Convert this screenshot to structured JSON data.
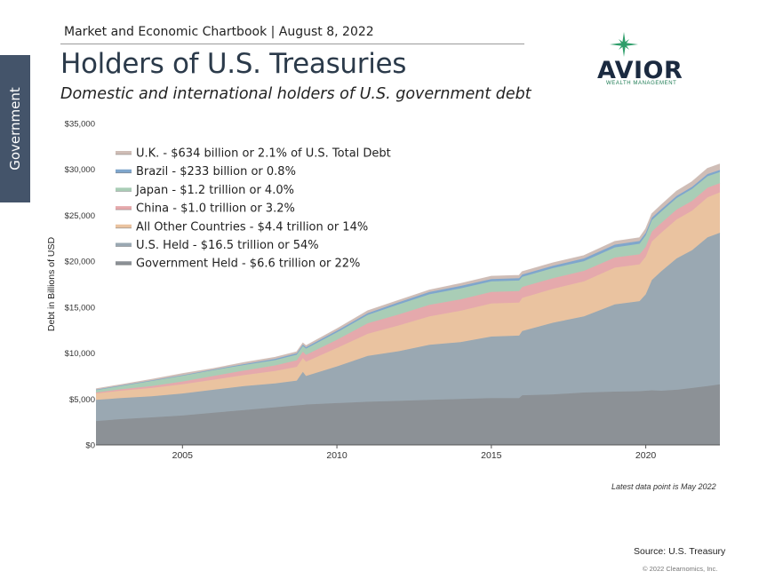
{
  "header": {
    "top_line": "Market and Economic Chartbook | August 8, 2022",
    "title": "Holders of U.S. Treasuries",
    "subtitle": "Domestic and international holders of U.S. government debt"
  },
  "side_tab": "Government",
  "logo": {
    "word": "AVIOR",
    "tagline": "WEALTH MANAGEMENT",
    "star_color": "#2e9e6a",
    "word_color": "#1b2a40"
  },
  "footer": {
    "latest": "Latest data point is May 2022",
    "source": "Source: U.S. Treasury",
    "copyright": "© 2022 Clearnomics, Inc."
  },
  "chart_data": {
    "type": "area",
    "stacked": true,
    "ylabel": "Debt in Billions of USD",
    "xlabel": "",
    "ylim": [
      0,
      35000
    ],
    "xlim": [
      2002.2,
      2022.4
    ],
    "y_ticks": [
      "$0",
      "$5,000",
      "$10,000",
      "$15,000",
      "$20,000",
      "$25,000",
      "$30,000",
      "$35,000"
    ],
    "x_ticks": [
      "2005",
      "2010",
      "2015",
      "2020"
    ],
    "grid": false,
    "legend_position": "top-left",
    "x": [
      2002.2,
      2003,
      2004,
      2005,
      2006,
      2007,
      2008,
      2008.7,
      2008.9,
      2009,
      2010,
      2011,
      2012,
      2013,
      2014,
      2015,
      2015.9,
      2016,
      2017,
      2018,
      2019,
      2019.8,
      2020,
      2020.2,
      2020.5,
      2021,
      2021.5,
      2022,
      2022.4
    ],
    "series": [
      {
        "name": "Government Held - $6.6 trillion or 22%",
        "color": "#8c9196",
        "values": [
          2600,
          2800,
          3000,
          3200,
          3500,
          3800,
          4100,
          4300,
          4350,
          4400,
          4550,
          4700,
          4800,
          4900,
          5000,
          5100,
          5100,
          5400,
          5500,
          5700,
          5800,
          5850,
          5900,
          5950,
          5900,
          6000,
          6200,
          6400,
          6600
        ]
      },
      {
        "name": "U.S. Held - $16.5 trillion or 54%",
        "color": "#9aa8b2",
        "values": [
          2300,
          2300,
          2300,
          2400,
          2500,
          2600,
          2600,
          2700,
          3600,
          3100,
          4000,
          5000,
          5400,
          6000,
          6200,
          6700,
          6800,
          7000,
          7800,
          8300,
          9500,
          9800,
          10500,
          12000,
          13000,
          14300,
          15000,
          16200,
          16500
        ]
      },
      {
        "name": "All Other Countries - $4.4 trillion or 14%",
        "color": "#eac3a0",
        "values": [
          700,
          800,
          900,
          1000,
          1100,
          1200,
          1350,
          1500,
          1500,
          1550,
          2000,
          2400,
          2800,
          3100,
          3400,
          3600,
          3600,
          3600,
          3700,
          3800,
          4000,
          4000,
          4100,
          4200,
          4200,
          4250,
          4300,
          4350,
          4400
        ]
      },
      {
        "name": "China - $1.0 trillion or 3.2%",
        "color": "#e5a9ac",
        "values": [
          100,
          150,
          200,
          300,
          400,
          500,
          600,
          700,
          700,
          750,
          900,
          1150,
          1200,
          1250,
          1250,
          1250,
          1250,
          1200,
          1150,
          1150,
          1100,
          1100,
          1070,
          1070,
          1060,
          1070,
          1060,
          1050,
          1000
        ]
      },
      {
        "name": "Japan - $1.2 trillion or 4.0%",
        "color": "#a9cdb6",
        "values": [
          300,
          400,
          600,
          650,
          650,
          600,
          580,
          620,
          620,
          680,
          800,
          900,
          1100,
          1150,
          1200,
          1150,
          1150,
          1100,
          1100,
          1050,
          1100,
          1150,
          1250,
          1250,
          1250,
          1250,
          1300,
          1250,
          1200
        ]
      },
      {
        "name": "Brazil - $233 billion or 0.8%",
        "color": "#7fa6cc",
        "values": [
          10,
          15,
          20,
          40,
          60,
          100,
          140,
          150,
          150,
          160,
          180,
          200,
          230,
          250,
          260,
          250,
          250,
          250,
          260,
          300,
          300,
          300,
          280,
          280,
          250,
          240,
          240,
          235,
          233
        ]
      },
      {
        "name": "U.K. - $634 billion or 2.1% of U.S. Total Debt",
        "color": "#cfbdb6",
        "values": [
          80,
          80,
          100,
          150,
          100,
          150,
          150,
          150,
          150,
          150,
          200,
          250,
          200,
          200,
          250,
          300,
          300,
          300,
          300,
          300,
          350,
          350,
          400,
          400,
          450,
          500,
          550,
          600,
          634
        ]
      }
    ]
  }
}
